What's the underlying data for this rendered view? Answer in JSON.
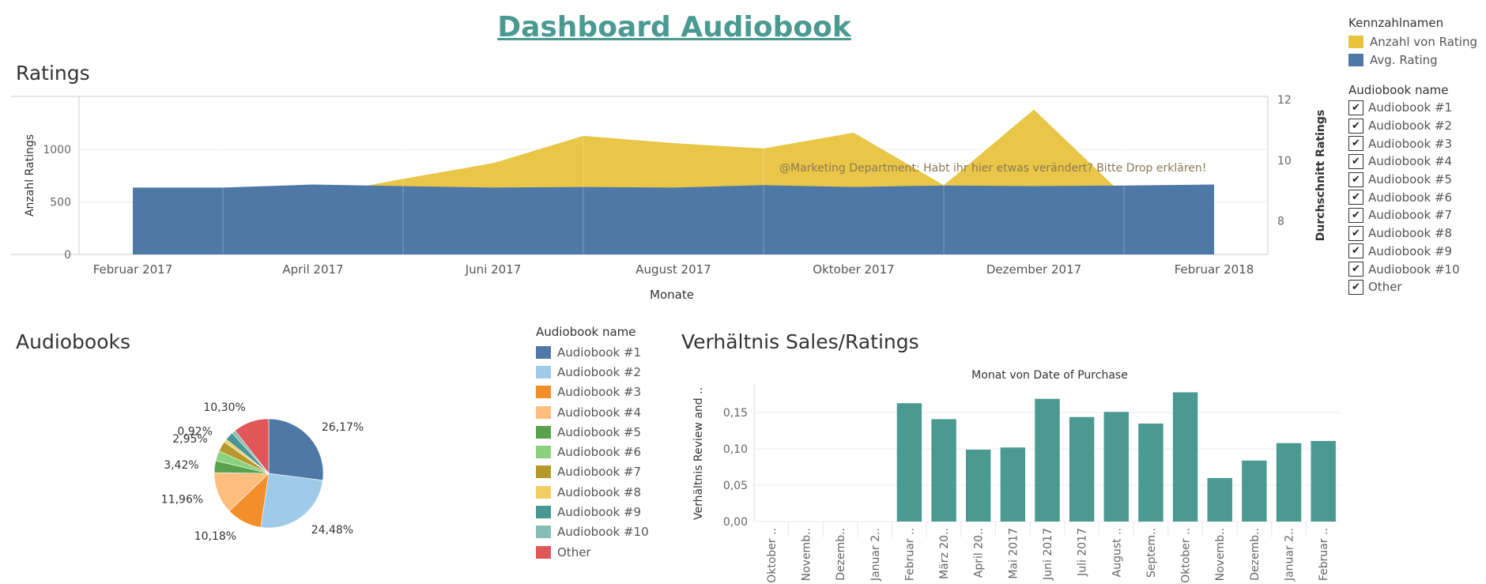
{
  "dashboard": {
    "title": "Dashboard Audiobook"
  },
  "top_legend": {
    "measure_title": "Kennzahlnamen",
    "measures": [
      {
        "label": "Anzahl von Rating",
        "color": "#e8c33e"
      },
      {
        "label": "Avg. Rating",
        "color": "#4e79a7"
      }
    ],
    "filter_title": "Audiobook name",
    "filter_items": [
      {
        "label": "Audiobook #1",
        "checked": true
      },
      {
        "label": "Audiobook #2",
        "checked": true
      },
      {
        "label": "Audiobook #3",
        "checked": true
      },
      {
        "label": "Audiobook #4",
        "checked": true
      },
      {
        "label": "Audiobook #5",
        "checked": true
      },
      {
        "label": "Audiobook #6",
        "checked": true
      },
      {
        "label": "Audiobook #7",
        "checked": true
      },
      {
        "label": "Audiobook #8",
        "checked": true
      },
      {
        "label": "Audiobook #9",
        "checked": true
      },
      {
        "label": "Audiobook #10",
        "checked": true
      },
      {
        "label": "Other",
        "checked": true
      }
    ],
    "check_glyph": "✔"
  },
  "pie_legend": {
    "title": "Audiobook name",
    "items": [
      {
        "label": "Audiobook #1",
        "color": "#4e79a7"
      },
      {
        "label": "Audiobook #2",
        "color": "#a0cbe8"
      },
      {
        "label": "Audiobook #3",
        "color": "#f28e2b"
      },
      {
        "label": "Audiobook #4",
        "color": "#ffbe7d"
      },
      {
        "label": "Audiobook #5",
        "color": "#59a14f"
      },
      {
        "label": "Audiobook #6",
        "color": "#8cd17d"
      },
      {
        "label": "Audiobook #7",
        "color": "#b6992d"
      },
      {
        "label": "Audiobook #8",
        "color": "#f1ce63"
      },
      {
        "label": "Audiobook #9",
        "color": "#499894"
      },
      {
        "label": "Audiobook #10",
        "color": "#86bcb6"
      },
      {
        "label": "Other",
        "color": "#e15759"
      }
    ]
  },
  "chart_data": [
    {
      "type": "area",
      "title": "Ratings",
      "xlabel": "Monate",
      "ylabel": "Anzahl Ratings",
      "y2label": "Durchschnitt Ratings",
      "x": [
        "2017-02",
        "2017-03",
        "2017-04",
        "2017-05",
        "2017-06",
        "2017-07",
        "2017-08",
        "2017-09",
        "2017-10",
        "2017-11",
        "2017-12",
        "2018-01",
        "2018-02"
      ],
      "x_tick_labels": [
        "Februar 2017",
        "April 2017",
        "Juni 2017",
        "August 2017",
        "Oktober 2017",
        "Dezember 2017",
        "Februar 2018"
      ],
      "series": [
        {
          "name": "Anzahl von Rating",
          "color": "#e8c33e",
          "axis": "left",
          "values": [
            560,
            560,
            560,
            720,
            870,
            1130,
            1060,
            1010,
            1160,
            660,
            1380,
            560,
            560
          ]
        },
        {
          "name": "Avg. Rating",
          "color": "#4e79a7",
          "axis": "right",
          "values": [
            9.1,
            9.1,
            9.2,
            9.15,
            9.1,
            9.12,
            9.1,
            9.18,
            9.12,
            9.17,
            9.15,
            9.17,
            9.2
          ]
        }
      ],
      "ylim": [
        0,
        1400
      ],
      "yticks": [
        0,
        500,
        1000
      ],
      "y2lim": [
        6.9,
        12.1
      ],
      "y2ticks": [
        8,
        10,
        12
      ],
      "annotation": "@Marketing Department: Habt ihr hier etwas verändert? Bitte Drop erklären!"
    },
    {
      "type": "pie",
      "title": "Audiobooks",
      "slices": [
        {
          "name": "Audiobook #1",
          "value": 26.17,
          "label": "26,17%",
          "color": "#4e79a7"
        },
        {
          "name": "Audiobook #2",
          "value": 24.48,
          "label": "24,48%",
          "color": "#a0cbe8"
        },
        {
          "name": "Audiobook #3",
          "value": 10.18,
          "label": "10,18%",
          "color": "#f28e2b"
        },
        {
          "name": "Audiobook #4",
          "value": 11.96,
          "label": "11,96%",
          "color": "#ffbe7d"
        },
        {
          "name": "Audiobook #5",
          "value": 3.42,
          "label": "3,42%",
          "color": "#59a14f"
        },
        {
          "name": "Audiobook #6",
          "value": 2.9,
          "label": "",
          "color": "#8cd17d"
        },
        {
          "name": "Audiobook #7",
          "value": 2.95,
          "label": "2,95%",
          "color": "#b6992d"
        },
        {
          "name": "Audiobook #8",
          "value": 0.92,
          "label": "0,92%",
          "color": "#f1ce63"
        },
        {
          "name": "Audiobook #9",
          "value": 2.5,
          "label": "",
          "color": "#499894"
        },
        {
          "name": "Audiobook #10",
          "value": 1.0,
          "label": "",
          "color": "#86bcb6"
        },
        {
          "name": "Other",
          "value": 10.3,
          "label": "10,30%",
          "color": "#e15759"
        }
      ]
    },
    {
      "type": "bar",
      "title": "Verhältnis Sales/Ratings",
      "subtitle": "Monat von Date of Purchase",
      "ylabel": "Verhältnis Review and ..",
      "color": "#4a9a92",
      "categories": [
        "Oktober ..",
        "Novemb..",
        "Dezemb..",
        "Januar 2..",
        "Februar ..",
        "März 20..",
        "April 20..",
        "Mai 2017",
        "Juni 2017",
        "Juli 2017",
        "August ..",
        "Septem..",
        "Oktober ..",
        "Novemb..",
        "Dezemb..",
        "Januar 2..",
        "Februar .."
      ],
      "values": [
        0,
        0,
        0,
        0,
        0.163,
        0.141,
        0.099,
        0.102,
        0.169,
        0.144,
        0.151,
        0.135,
        0.178,
        0.06,
        0.084,
        0.108,
        0.111
      ],
      "ylim": [
        0,
        0.185
      ],
      "yticks": [
        0.0,
        0.05,
        0.1,
        0.15
      ],
      "ytick_labels": [
        "0,00",
        "0,05",
        "0,10",
        "0,15"
      ]
    }
  ]
}
